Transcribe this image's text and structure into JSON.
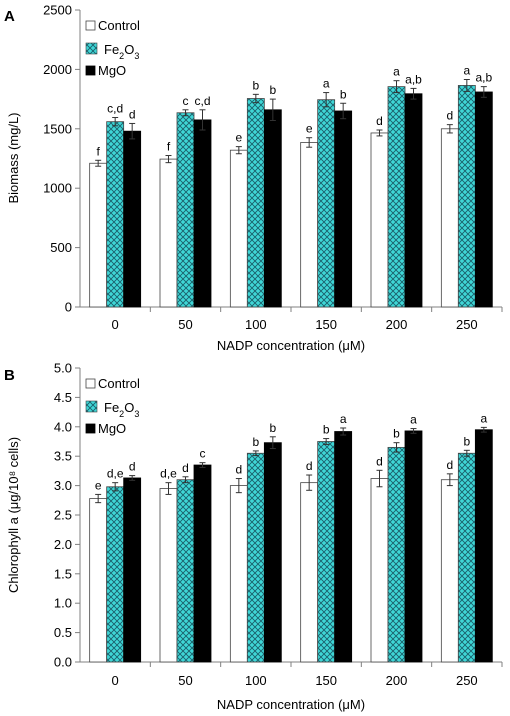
{
  "colors": {
    "control_fill": "#ffffff",
    "fe2o3_fill": "#3fd6d6",
    "fe2o3_hatch": "#1a5f6a",
    "mgo_fill": "#000000",
    "axis": "#808080"
  },
  "chart_data": [
    {
      "panel": "A",
      "type": "bar",
      "xlabel": "NADP concentration (μM)",
      "ylabel": "Biomass (mg/L)",
      "ylim": [
        0,
        2500
      ],
      "yticks": [
        "0",
        "500",
        "1000",
        "1500",
        "2000",
        "2500"
      ],
      "categories": [
        "0",
        "50",
        "100",
        "150",
        "200",
        "250"
      ],
      "legend": {
        "position": "top-left",
        "entries": [
          {
            "name": "Control"
          },
          {
            "name_main": "Fe",
            "sub1": "2",
            "mid": "O",
            "sub2": "3"
          },
          {
            "name": "MgO"
          }
        ]
      },
      "series": [
        {
          "name": "Control",
          "values": [
            1210,
            1245,
            1320,
            1385,
            1465,
            1500
          ],
          "errors": [
            25,
            30,
            30,
            40,
            25,
            35
          ],
          "labels": [
            "f",
            "f",
            "e",
            "e",
            "d",
            "d"
          ]
        },
        {
          "name": "Fe2O3",
          "values": [
            1560,
            1635,
            1755,
            1745,
            1855,
            1865
          ],
          "errors": [
            35,
            25,
            35,
            60,
            50,
            50
          ],
          "labels": [
            "c,d",
            "c",
            "b",
            "a",
            "a",
            "a"
          ]
        },
        {
          "name": "MgO",
          "values": [
            1480,
            1575,
            1660,
            1650,
            1795,
            1810
          ],
          "errors": [
            65,
            85,
            90,
            65,
            45,
            45
          ],
          "labels": [
            "d",
            "c,d",
            "b",
            "b",
            "a,b",
            "a,b"
          ]
        }
      ]
    },
    {
      "panel": "B",
      "type": "bar",
      "xlabel": "NADP concentration (μM)",
      "ylabel": "Chlorophyll a (μg/10⁸ cells)",
      "ylim": [
        0,
        5
      ],
      "yticks": [
        "0.0",
        "0.5",
        "1.0",
        "1.5",
        "2.0",
        "2.5",
        "3.0",
        "3.5",
        "4.0",
        "4.5",
        "5.0"
      ],
      "categories": [
        "0",
        "50",
        "100",
        "150",
        "200",
        "250"
      ],
      "legend": {
        "position": "top-left",
        "entries": [
          {
            "name": "Control"
          },
          {
            "name_main": "Fe",
            "sub1": "2",
            "mid": "O",
            "sub2": "3"
          },
          {
            "name": "MgO"
          }
        ]
      },
      "series": [
        {
          "name": "Control",
          "values": [
            2.78,
            2.95,
            3.0,
            3.05,
            3.12,
            3.1
          ],
          "errors": [
            0.07,
            0.1,
            0.12,
            0.13,
            0.14,
            0.1
          ],
          "labels": [
            "e",
            "d,e",
            "d",
            "d",
            "d",
            "d"
          ]
        },
        {
          "name": "Fe2O3",
          "values": [
            2.98,
            3.1,
            3.55,
            3.75,
            3.65,
            3.55
          ],
          "errors": [
            0.07,
            0.05,
            0.04,
            0.05,
            0.08,
            0.05
          ],
          "labels": [
            "d,e",
            "d",
            "b",
            "b",
            "b",
            "b"
          ]
        },
        {
          "name": "MgO",
          "values": [
            3.13,
            3.35,
            3.73,
            3.92,
            3.93,
            3.95
          ],
          "errors": [
            0.04,
            0.04,
            0.1,
            0.06,
            0.04,
            0.04
          ],
          "labels": [
            "d",
            "c",
            "b",
            "a",
            "a",
            "a"
          ]
        }
      ]
    }
  ]
}
